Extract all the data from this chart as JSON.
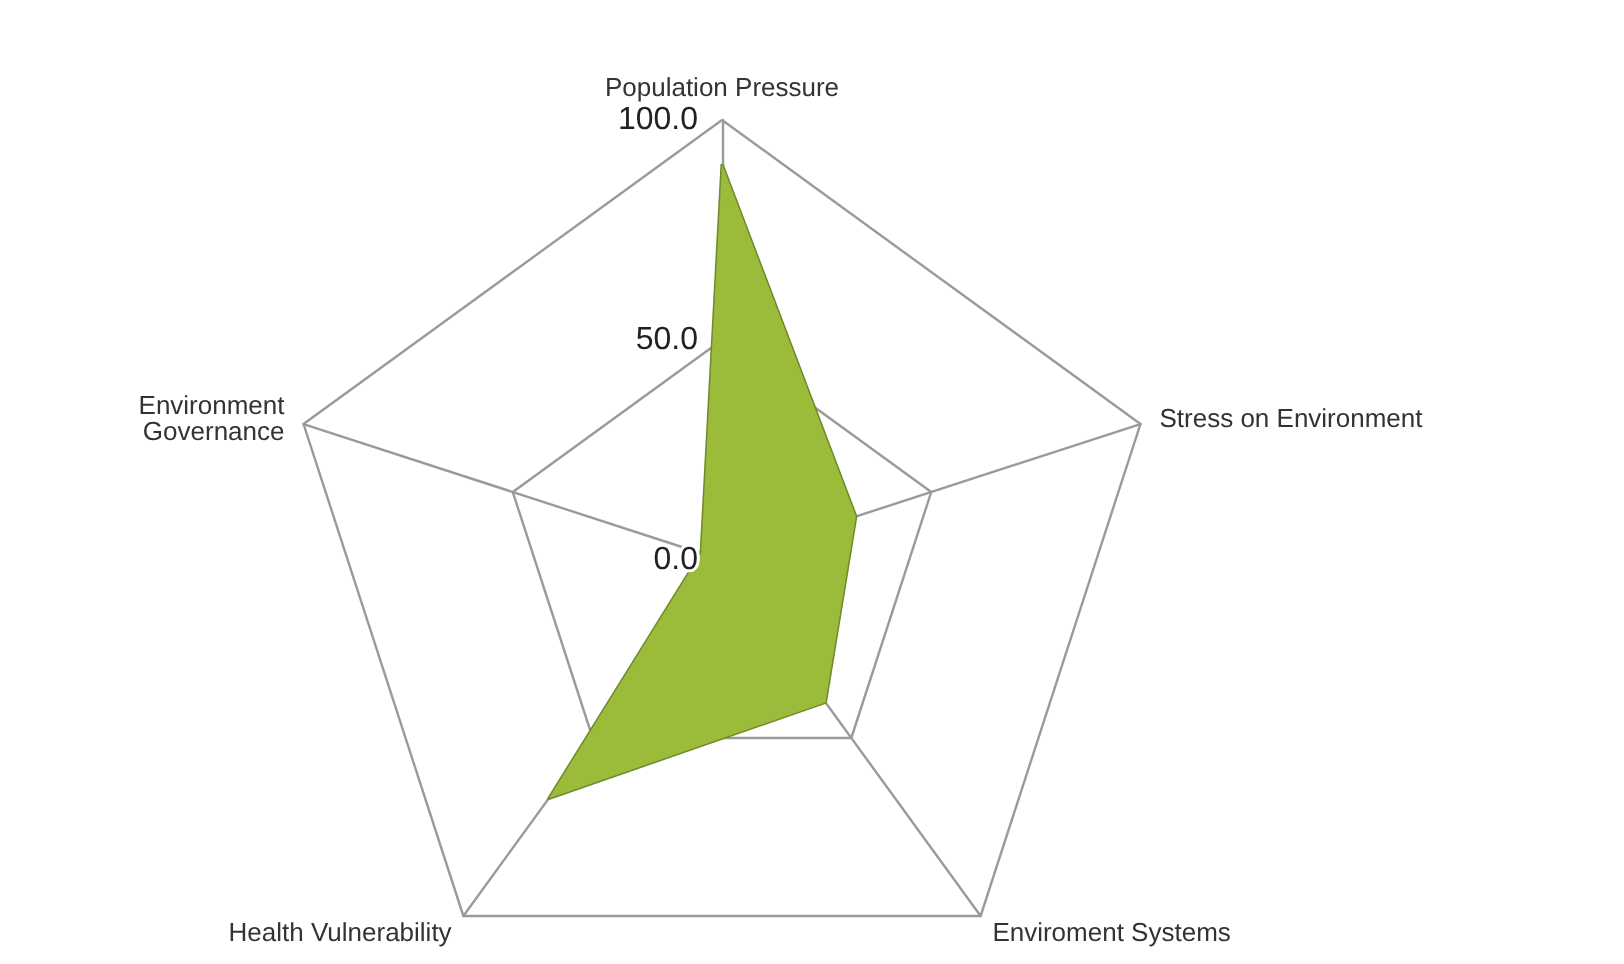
{
  "chart_data": {
    "type": "radar",
    "categories": [
      "Population Pressure",
      "Stress on Environment",
      "Enviroment Systems",
      "Health Vulnerability",
      "Environment\nGovernance"
    ],
    "series": [
      {
        "color": "#9bbb3b",
        "values": [
          90,
          32,
          40,
          67,
          5
        ]
      }
    ],
    "ylim": [
      0,
      100
    ],
    "yticks": [
      {
        "value": 0,
        "label": "0.0"
      },
      {
        "value": 50,
        "label": "50.0"
      },
      {
        "value": 100,
        "label": "100.0"
      }
    ],
    "grid": true,
    "marker": "none"
  }
}
